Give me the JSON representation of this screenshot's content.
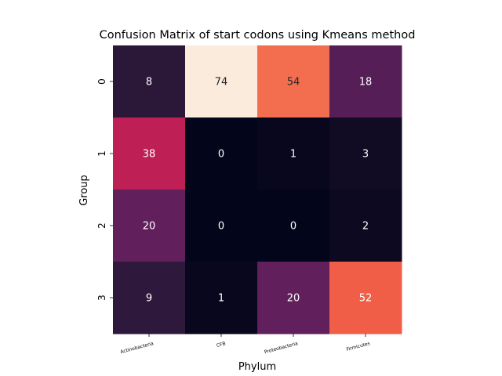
{
  "chart_data": {
    "type": "heatmap",
    "title": "Confusion Matrix of start codons using Kmeans method",
    "xlabel": "Phylum",
    "ylabel": "Group",
    "x_categories": [
      "Actinobacteria",
      "CFB",
      "Proteobacteria",
      "Firmicutes"
    ],
    "y_categories": [
      "0",
      "1",
      "2",
      "3"
    ],
    "values": [
      [
        8,
        74,
        54,
        18
      ],
      [
        38,
        0,
        1,
        3
      ],
      [
        20,
        0,
        0,
        2
      ],
      [
        9,
        1,
        20,
        52
      ]
    ],
    "colormap": "rocket",
    "color_range": [
      0,
      74
    ],
    "colorbar": false,
    "annotated": true
  }
}
